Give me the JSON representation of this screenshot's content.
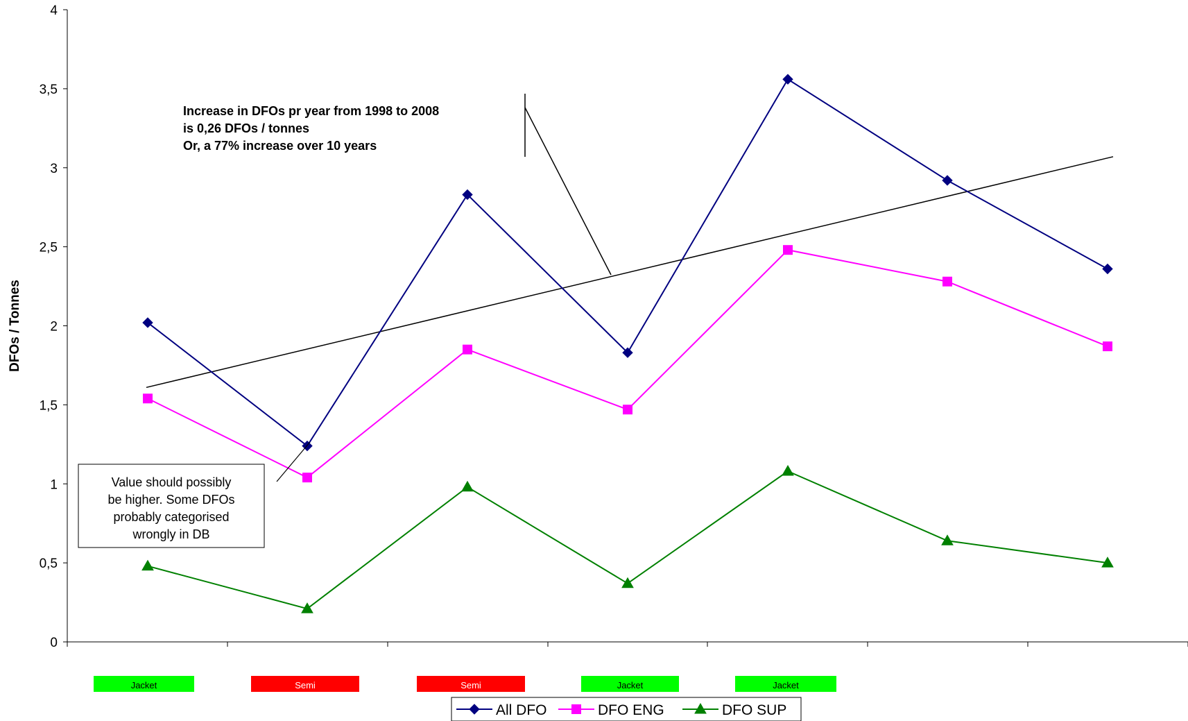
{
  "chart_data": {
    "type": "line",
    "ylabel": "DFOs / Tonnes",
    "ylim": [
      0,
      4
    ],
    "yticks": [
      0,
      0.5,
      1,
      1.5,
      2,
      2.5,
      3,
      3.5,
      4
    ],
    "ytick_labels": [
      "0",
      "0,5",
      "1",
      "1,5",
      "2",
      "2,5",
      "3",
      "3,5",
      "4"
    ],
    "grid": false,
    "n_points": 7,
    "series": [
      {
        "name": "All DFO",
        "color": "#000080",
        "marker": "diamond",
        "values": [
          2.02,
          1.24,
          2.83,
          1.83,
          3.56,
          2.92,
          2.36
        ]
      },
      {
        "name": "DFO ENG",
        "color": "#ff00ff",
        "marker": "square",
        "values": [
          1.54,
          1.04,
          1.85,
          1.47,
          2.48,
          2.28,
          1.87
        ]
      },
      {
        "name": "DFO SUP",
        "color": "#008000",
        "marker": "triangle",
        "values": [
          0.48,
          0.21,
          0.98,
          0.37,
          1.08,
          0.64,
          0.5
        ]
      }
    ],
    "trendline": {
      "start": 1.61,
      "end": 3.07,
      "color": "#000000"
    },
    "annotations": [
      {
        "id": "trend-note",
        "lines": [
          "Increase in DFOs pr year from 1998 to 2008",
          "is 0,26 DFOs / tonnes",
          "Or, a 77% increase over 10 years"
        ]
      },
      {
        "id": "value-note",
        "lines": [
          "Value should possibly",
          "be higher. Some DFOs",
          "probably categorised",
          "wrongly in DB"
        ]
      }
    ],
    "category_badges": [
      {
        "label": "Jacket",
        "color": "#00ff00"
      },
      {
        "label": "Semi",
        "color": "#ff0000"
      },
      {
        "label": "Semi",
        "color": "#ff0000"
      },
      {
        "label": "Jacket",
        "color": "#00ff00"
      },
      {
        "label": "Jacket",
        "color": "#00ff00"
      }
    ],
    "legend_position": "bottom"
  }
}
